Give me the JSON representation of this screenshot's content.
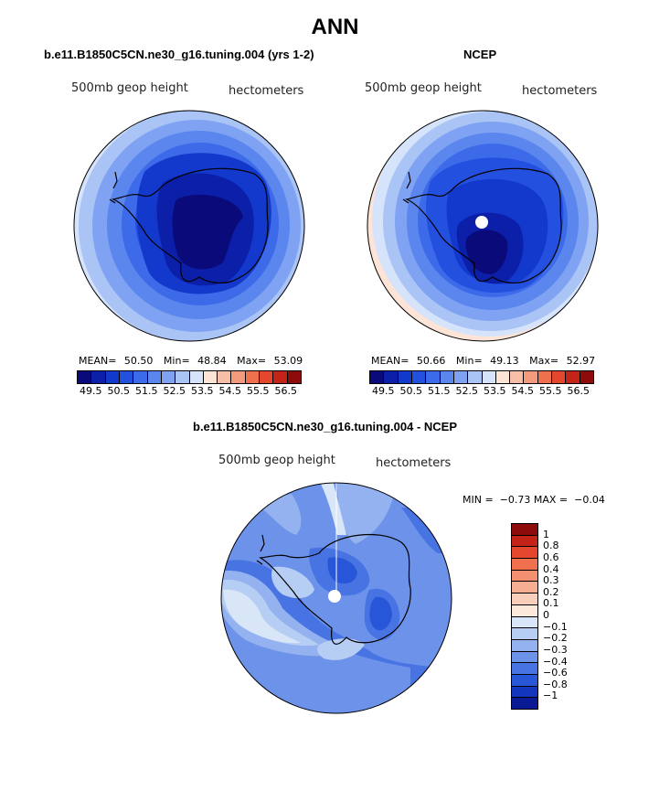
{
  "figure_title": "ANN",
  "panels": [
    {
      "title": "b.e11.B1850C5CN.ne30_g16.tuning.004 (yrs 1-2)",
      "left_label": "500mb geop height",
      "right_label": "hectometers",
      "stats": {
        "mean_label": "MEAN=",
        "mean": "50.50",
        "min_label": "Min=",
        "min": "48.84",
        "max_label": "Max=",
        "max": "53.09"
      }
    },
    {
      "title": "NCEP",
      "left_label": "500mb geop height",
      "right_label": "hectometers",
      "stats": {
        "mean_label": "MEAN=",
        "mean": "50.66",
        "min_label": "Min=",
        "min": "49.13",
        "max_label": "Max=",
        "max": "52.97"
      }
    }
  ],
  "colorbar_top": {
    "colors": [
      "#0a0a7a",
      "#0c1fa8",
      "#1238cc",
      "#2450e0",
      "#3d6ae8",
      "#5a86ee",
      "#7fa3f2",
      "#aac4f6",
      "#d6e4fb",
      "#fde4d6",
      "#f8bfa8",
      "#f49a7c",
      "#ef6f4e",
      "#e4472e",
      "#c42418",
      "#8e0b0b"
    ],
    "ticks": [
      "49.5",
      "50.5",
      "51.5",
      "52.5",
      "53.5",
      "54.5",
      "55.5",
      "56.5"
    ]
  },
  "diff_panel": {
    "title": "b.e11.B1850C5CN.ne30_g16.tuning.004 - NCEP",
    "left_label": "500mb geop height",
    "right_label": "hectometers",
    "minmax": "MIN =  −0.73 MAX =  −0.04"
  },
  "colorbar_diff": {
    "colors": [
      "#8e0b0b",
      "#c42418",
      "#e4472e",
      "#ef6f4e",
      "#f3906f",
      "#f6ae92",
      "#f9cfbc",
      "#fde8dc",
      "#d8e6f8",
      "#b6cdf4",
      "#93b2ef",
      "#6c92ea",
      "#4874e3",
      "#2856d8",
      "#1236be",
      "#0a1a94"
    ],
    "labels": [
      "1",
      "0.8",
      "0.6",
      "0.4",
      "0.3",
      "0.2",
      "0.1",
      "0",
      "−0.1",
      "−0.2",
      "−0.3",
      "−0.4",
      "−0.6",
      "−0.8",
      "−1"
    ]
  }
}
